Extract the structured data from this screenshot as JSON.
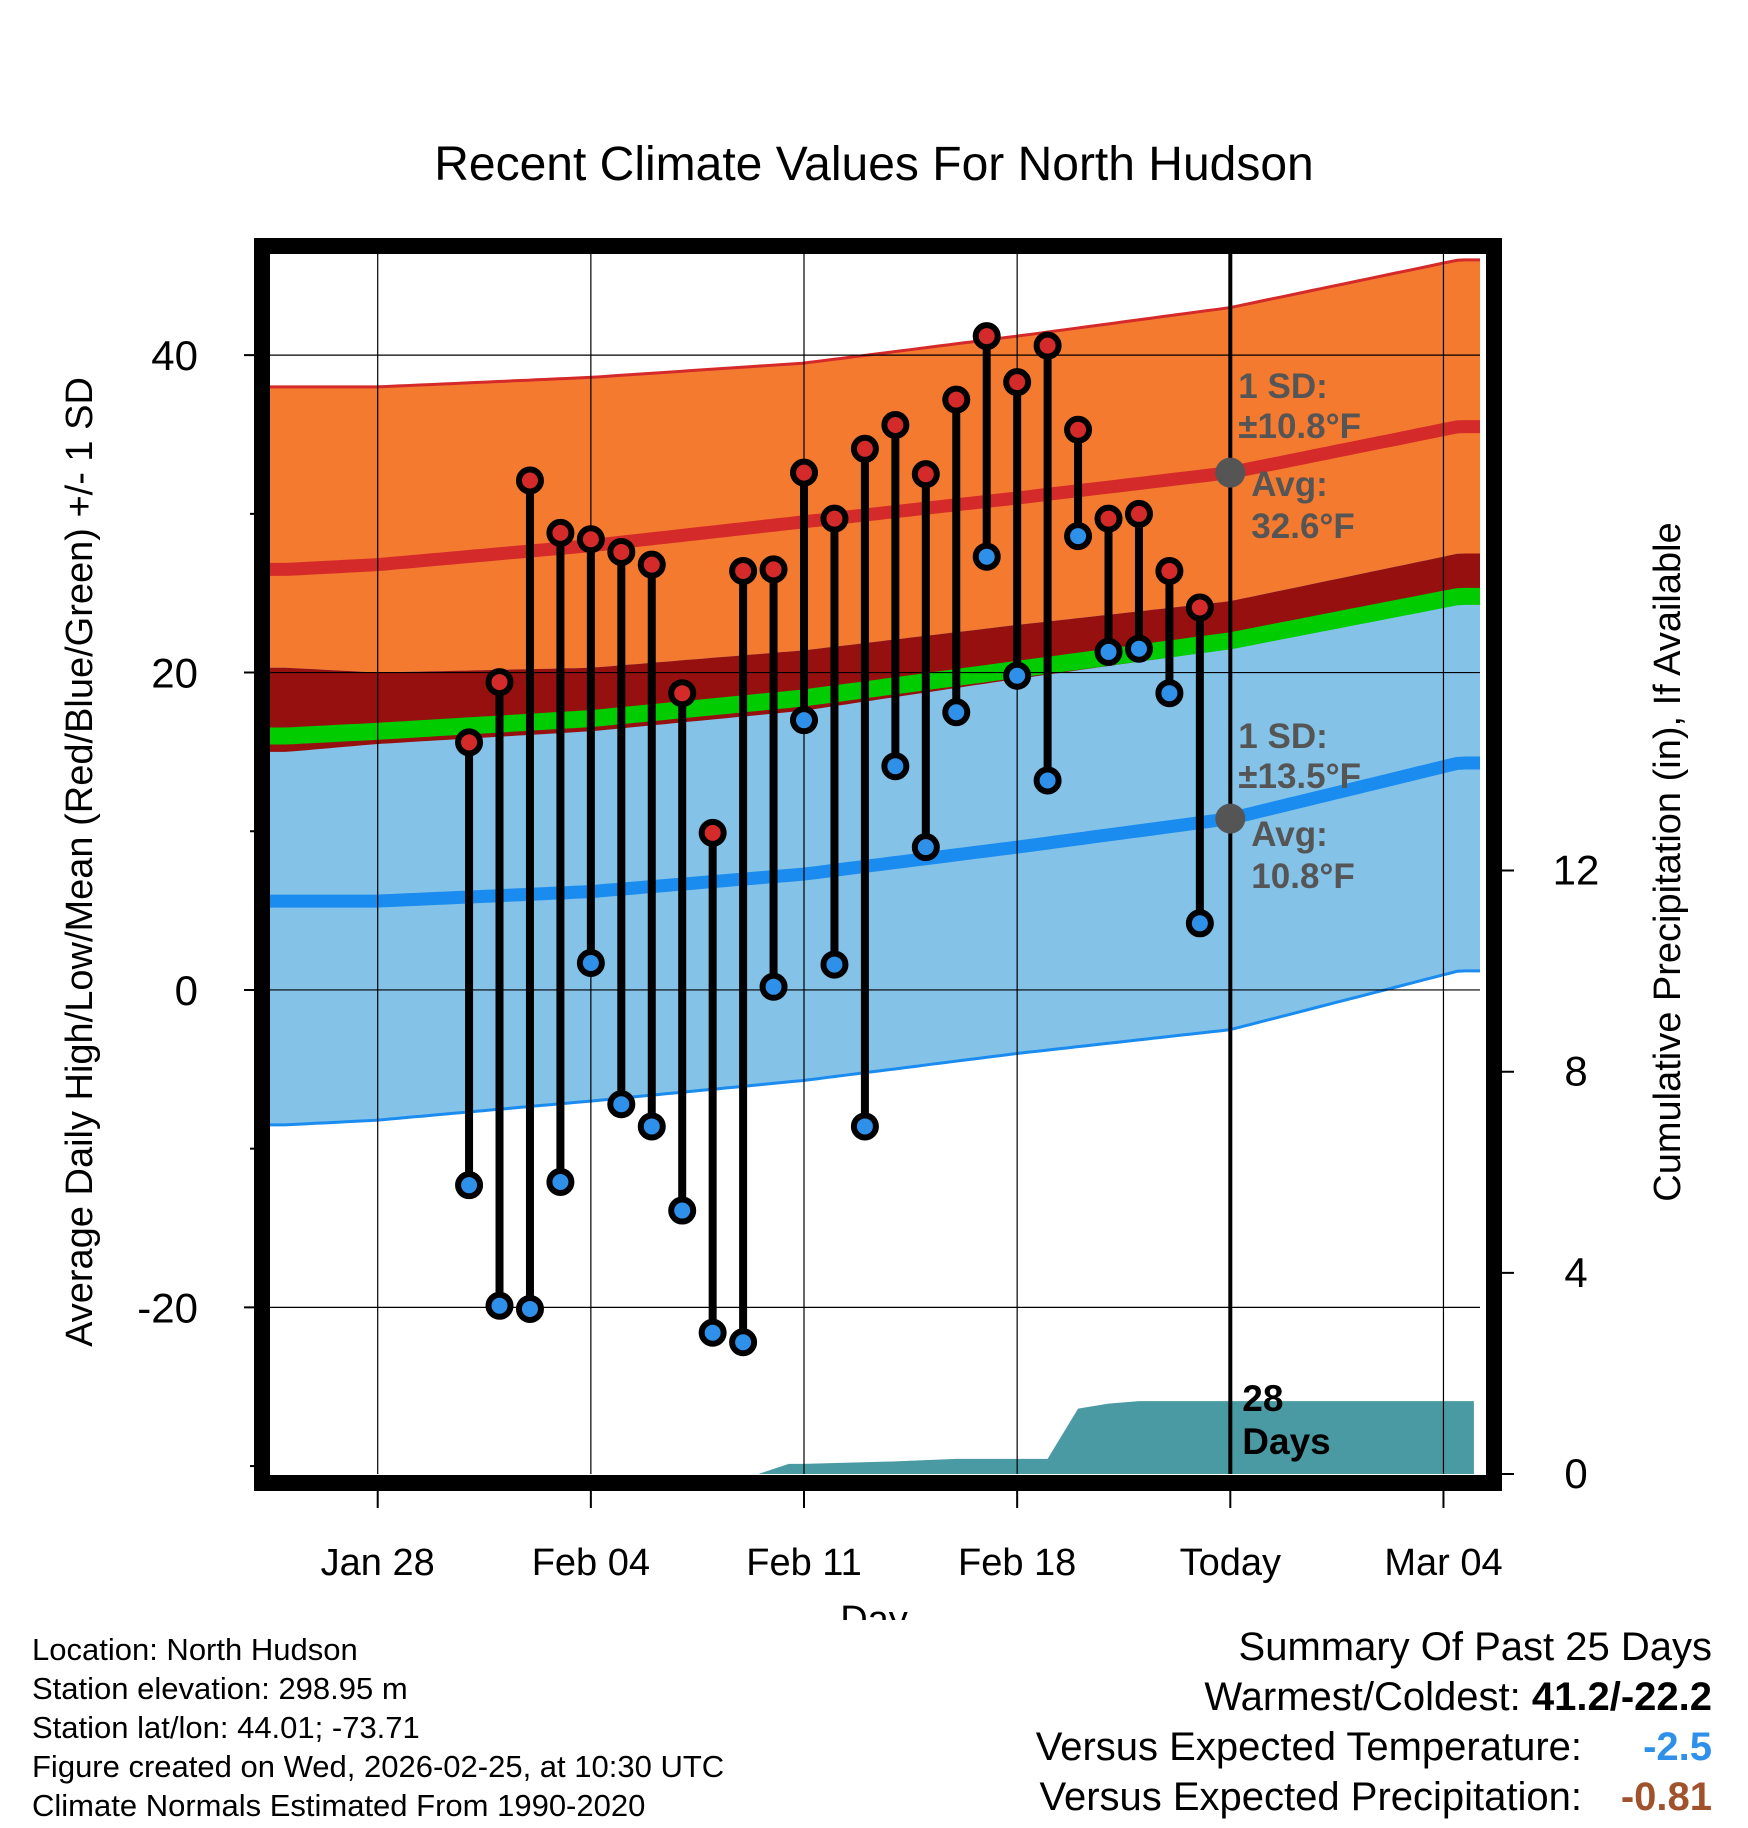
{
  "chart_data": {
    "type": "line",
    "title": "Recent Climate Values For North Hudson",
    "xlabel": "Day",
    "ylabel": "Average Daily High/Low/Mean (Red/Blue/Green) +/- 1 SD",
    "y2label": "Cumulative Precipitation (in), If Available",
    "xlim": [
      -3.8,
      36.2
    ],
    "ylim": [
      -30.5,
      46.5
    ],
    "y2lim": [
      0,
      24.3
    ],
    "x_ticks": [
      {
        "x": 0,
        "label": "Jan 28"
      },
      {
        "x": 7,
        "label": "Feb 04"
      },
      {
        "x": 14,
        "label": "Feb 11"
      },
      {
        "x": 21,
        "label": "Feb 18"
      },
      {
        "x": 28,
        "label": "Today"
      },
      {
        "x": 35,
        "label": "Mar 04"
      }
    ],
    "y_ticks": [
      -20,
      0,
      20,
      40
    ],
    "y_minor_ticks": [
      -30,
      -10,
      10,
      30
    ],
    "y2_ticks": [
      0,
      4,
      8,
      12
    ],
    "today_x": 28,
    "today_label": "28\nDays",
    "normals": {
      "high_avg": [
        [
          -3,
          26.5
        ],
        [
          0,
          26.8
        ],
        [
          7,
          28.0
        ],
        [
          14,
          29.5
        ],
        [
          21,
          31.0
        ],
        [
          28,
          32.6
        ],
        [
          35.5,
          35.5
        ]
      ],
      "high_upper": [
        [
          -3,
          38.0
        ],
        [
          0,
          38.0
        ],
        [
          7,
          38.6
        ],
        [
          14,
          39.5
        ],
        [
          21,
          41.2
        ],
        [
          28,
          43.0
        ],
        [
          35.5,
          46.0
        ]
      ],
      "low_avg": [
        [
          -3,
          5.6
        ],
        [
          0,
          5.6
        ],
        [
          7,
          6.2
        ],
        [
          14,
          7.3
        ],
        [
          21,
          9.0
        ],
        [
          28,
          10.8
        ],
        [
          35.5,
          14.3
        ]
      ],
      "low_lower": [
        [
          -3,
          -8.5
        ],
        [
          0,
          -8.2
        ],
        [
          7,
          -7.0
        ],
        [
          14,
          -5.7
        ],
        [
          21,
          -4.0
        ],
        [
          28,
          -2.5
        ],
        [
          35.5,
          1.2
        ]
      ],
      "mean_avg": [
        [
          -3,
          16.0
        ],
        [
          0,
          16.3
        ],
        [
          7,
          17.1
        ],
        [
          14,
          18.4
        ],
        [
          21,
          20.2
        ],
        [
          28,
          22.0
        ],
        [
          35.5,
          24.8
        ]
      ],
      "high_lower": [
        [
          -3,
          15.0
        ],
        [
          0,
          15.5
        ],
        [
          7,
          16.3
        ],
        [
          14,
          17.6
        ],
        [
          21,
          19.6
        ],
        [
          28,
          21.5
        ],
        [
          35.5,
          24.5
        ]
      ],
      "low_upper": [
        [
          -3,
          20.3
        ],
        [
          0,
          20.0
        ],
        [
          7,
          20.3
        ],
        [
          14,
          21.4
        ],
        [
          21,
          23.0
        ],
        [
          28,
          24.5
        ],
        [
          35.5,
          27.5
        ]
      ]
    },
    "series": [
      {
        "name": "Daily High",
        "color": "#d42a2a",
        "x": [
          3,
          4,
          5,
          6,
          7,
          8,
          9,
          10,
          11,
          12,
          13,
          14,
          15,
          16,
          17,
          18,
          19,
          20,
          21,
          22,
          23,
          24,
          25,
          26,
          27
        ],
        "values": [
          15.6,
          19.4,
          32.1,
          28.8,
          28.4,
          27.6,
          26.8,
          18.7,
          9.9,
          26.4,
          26.5,
          32.6,
          29.7,
          34.1,
          35.6,
          32.5,
          37.2,
          41.2,
          38.3,
          40.6,
          35.3,
          29.7,
          30.0,
          26.4,
          24.1
        ]
      },
      {
        "name": "Daily Low",
        "color": "#2f90ea",
        "x": [
          3,
          4,
          5,
          6,
          7,
          8,
          9,
          10,
          11,
          12,
          13,
          14,
          15,
          16,
          17,
          18,
          19,
          20,
          21,
          22,
          23,
          24,
          25,
          26,
          27
        ],
        "values": [
          -12.3,
          -19.9,
          -20.1,
          -12.1,
          1.7,
          -7.2,
          -8.6,
          -13.9,
          -21.6,
          -22.2,
          0.2,
          17.0,
          1.6,
          -8.6,
          14.1,
          9.0,
          17.5,
          27.3,
          19.8,
          13.2,
          28.6,
          21.3,
          21.5,
          18.7,
          4.2
        ]
      }
    ],
    "precipitation": {
      "color": "#4a9aa4",
      "x": [
        12.5,
        13.5,
        14,
        17,
        19,
        21,
        22,
        23,
        24,
        25,
        28,
        36
      ],
      "values": [
        0,
        0.2,
        0.2,
        0.25,
        0.3,
        0.3,
        0.3,
        1.3,
        1.4,
        1.45,
        1.45,
        1.45
      ]
    },
    "annotations": {
      "high_sd_label": "1 SD:",
      "high_sd_value": "±10.8°F",
      "high_avg_label": "Avg:",
      "high_avg_value": "32.6°F",
      "low_sd_label": "1 SD:",
      "low_sd_value": "±13.5°F",
      "low_avg_label": "Avg:",
      "low_avg_value": "10.8°F",
      "high_marker_value": 32.6,
      "low_marker_value": 10.8
    },
    "colors": {
      "high_band": "#f47a30",
      "high_line": "#d42a2a",
      "overlap_band": "#961010",
      "low_band": "#84c2e8",
      "low_line": "#1a8cf0",
      "mean_line": "#00cc00",
      "annotation_text": "#555555"
    }
  },
  "footer": {
    "location": "Location: North Hudson",
    "elevation": "Station elevation: 298.95 m",
    "latlon": "Station lat/lon: 44.01; -73.71",
    "created": "Figure created on Wed, 2026-02-25, at 10:30 UTC",
    "normals": "Climate Normals Estimated From 1990-2020"
  },
  "summary": {
    "title": "Summary Of Past 25 Days",
    "warm_cold_label": "Warmest/Coldest: ",
    "warm_cold_value": "41.2/-22.2",
    "temp_label": "Versus Expected Temperature:",
    "temp_value": "-2.5",
    "temp_color": "#2f90ea",
    "precip_label": "Versus Expected Precipitation:",
    "precip_value": "-0.81",
    "precip_color": "#a0522d"
  }
}
